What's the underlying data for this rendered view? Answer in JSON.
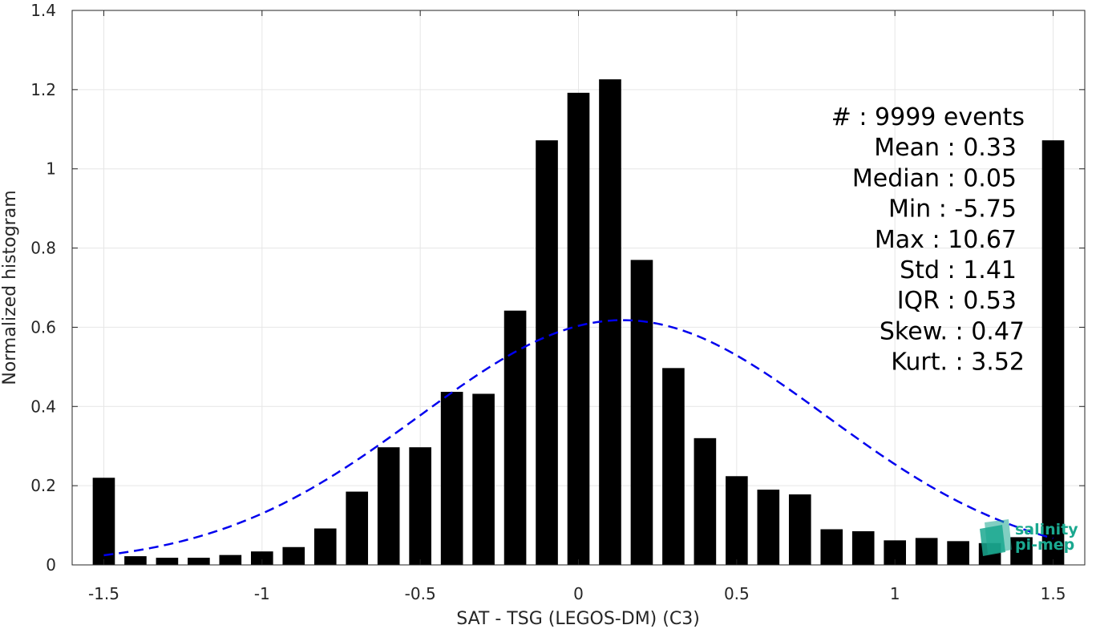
{
  "chart_data": {
    "type": "bar",
    "xlabel": "SAT - TSG (LEGOS-DM) (C3)",
    "ylabel": "Normalized histogram",
    "xlim": [
      -1.6,
      1.6
    ],
    "ylim": [
      0,
      1.4
    ],
    "xticks": [
      -1.5,
      -1,
      -0.5,
      0,
      0.5,
      1,
      1.5
    ],
    "xtick_labels": [
      "-1.5",
      "-1",
      "-0.5",
      "0",
      "0.5",
      "1",
      "1.5"
    ],
    "yticks": [
      0,
      0.2,
      0.4,
      0.6,
      0.8,
      1,
      1.2,
      1.4
    ],
    "ytick_labels": [
      "0",
      "0.2",
      "0.4",
      "0.6",
      "0.8",
      "1",
      "1.2",
      "1.4"
    ],
    "grid": true,
    "bar_color": "#000000",
    "x": [
      -1.5,
      -1.4,
      -1.3,
      -1.2,
      -1.1,
      -1.0,
      -0.9,
      -0.8,
      -0.7,
      -0.6,
      -0.5,
      -0.4,
      -0.3,
      -0.2,
      -0.1,
      0.0,
      0.1,
      0.2,
      0.3,
      0.4,
      0.5,
      0.6,
      0.7,
      0.8,
      0.9,
      1.0,
      1.1,
      1.2,
      1.3,
      1.4,
      1.5
    ],
    "values": [
      0.22,
      0.022,
      0.018,
      0.018,
      0.025,
      0.034,
      0.045,
      0.092,
      0.185,
      0.297,
      0.297,
      0.437,
      0.432,
      0.642,
      1.072,
      1.192,
      1.226,
      0.77,
      0.497,
      0.32,
      0.224,
      0.19,
      0.178,
      0.09,
      0.085,
      0.062,
      0.068,
      0.06,
      0.055,
      0.07,
      1.072
    ],
    "fit_curve": {
      "type": "gaussian",
      "style": "dashed",
      "color": "#0000ee",
      "mean": 0.14,
      "std": 0.645,
      "peak": 0.618,
      "x_range": [
        -1.5,
        1.5
      ]
    },
    "stats": [
      "#  : 9999 events",
      "Mean : 0.33",
      "Median : 0.05",
      "Min : -5.75",
      "Max : 10.67",
      "Std : 1.41",
      "IQR : 0.53",
      "Skew. : 0.47",
      "Kurt. : 3.52"
    ]
  },
  "logo": {
    "line1": "salinity",
    "line2": "pi-mep",
    "color": "#1aa88f"
  }
}
